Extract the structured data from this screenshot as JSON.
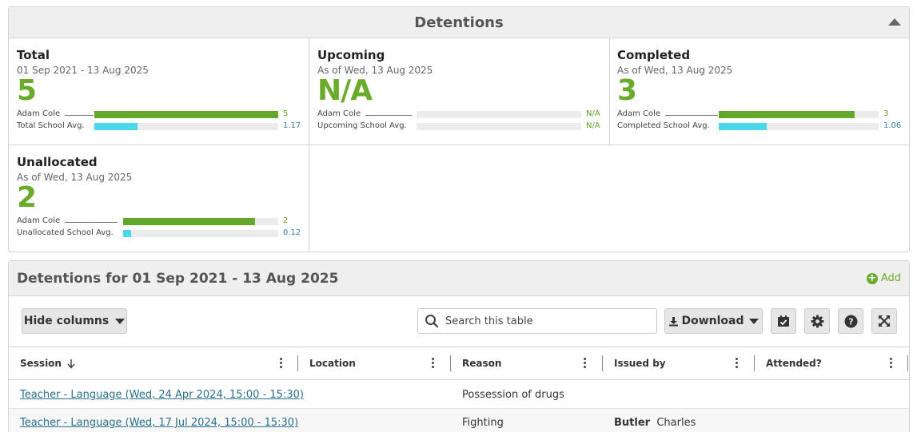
{
  "panel": {
    "title": "Detentions"
  },
  "cards": [
    {
      "title": "Total",
      "subtitle": "01 Sep 2021 - 13 Aug 2025",
      "big_value": "5",
      "student": {
        "label": "Adam Cole",
        "value": "5",
        "fraction": 1.0
      },
      "average": {
        "label": "Total School Avg.",
        "value": "1.17",
        "fraction": 0.234
      }
    },
    {
      "title": "Upcoming",
      "subtitle": "As of Wed, 13 Aug 2025",
      "big_value": "N/A",
      "student": {
        "label": "Adam Cole",
        "value": "N/A",
        "fraction": 0
      },
      "average": {
        "label": "Upcoming School Avg.",
        "value": "N/A",
        "fraction": 0
      }
    },
    {
      "title": "Completed",
      "subtitle": "As of Wed, 13 Aug 2025",
      "big_value": "3",
      "student": {
        "label": "Adam Cole",
        "value": "3",
        "fraction": 0.85
      },
      "average": {
        "label": "Completed School Avg.",
        "value": "1.06",
        "fraction": 0.3
      }
    },
    {
      "title": "Unallocated",
      "subtitle": "As of Wed, 13 Aug 2025",
      "big_value": "2",
      "student": {
        "label": "Adam Cole",
        "value": "2",
        "fraction": 0.85
      },
      "average": {
        "label": "Unallocated School Avg.",
        "value": "0.12",
        "fraction": 0.05
      }
    }
  ],
  "table_panel": {
    "title": "Detentions for 01 Sep 2021 - 13 Aug 2025",
    "add_label": "Add"
  },
  "toolbar": {
    "hide_columns": "Hide columns",
    "search_placeholder": "Search this table",
    "download": "Download"
  },
  "columns": [
    "Session",
    "Location",
    "Reason",
    "Issued by",
    "Attended?"
  ],
  "rows": [
    {
      "session": "Teacher - Language (Wed, 24 Apr 2024, 15:00 - 15:30)",
      "location": "",
      "reason": "Possession of drugs",
      "issued_last": "",
      "issued_first": "",
      "attended": ""
    },
    {
      "session": "Teacher - Language (Wed, 17 Jul 2024, 15:00 - 15:30)",
      "location": "",
      "reason": "Fighting",
      "issued_last": "Butler",
      "issued_first": "Charles",
      "attended": ""
    }
  ],
  "colors": {
    "accent_green": "#6aab2c",
    "bar_cyan": "#4ad7ea",
    "link": "#2a6f8c"
  }
}
